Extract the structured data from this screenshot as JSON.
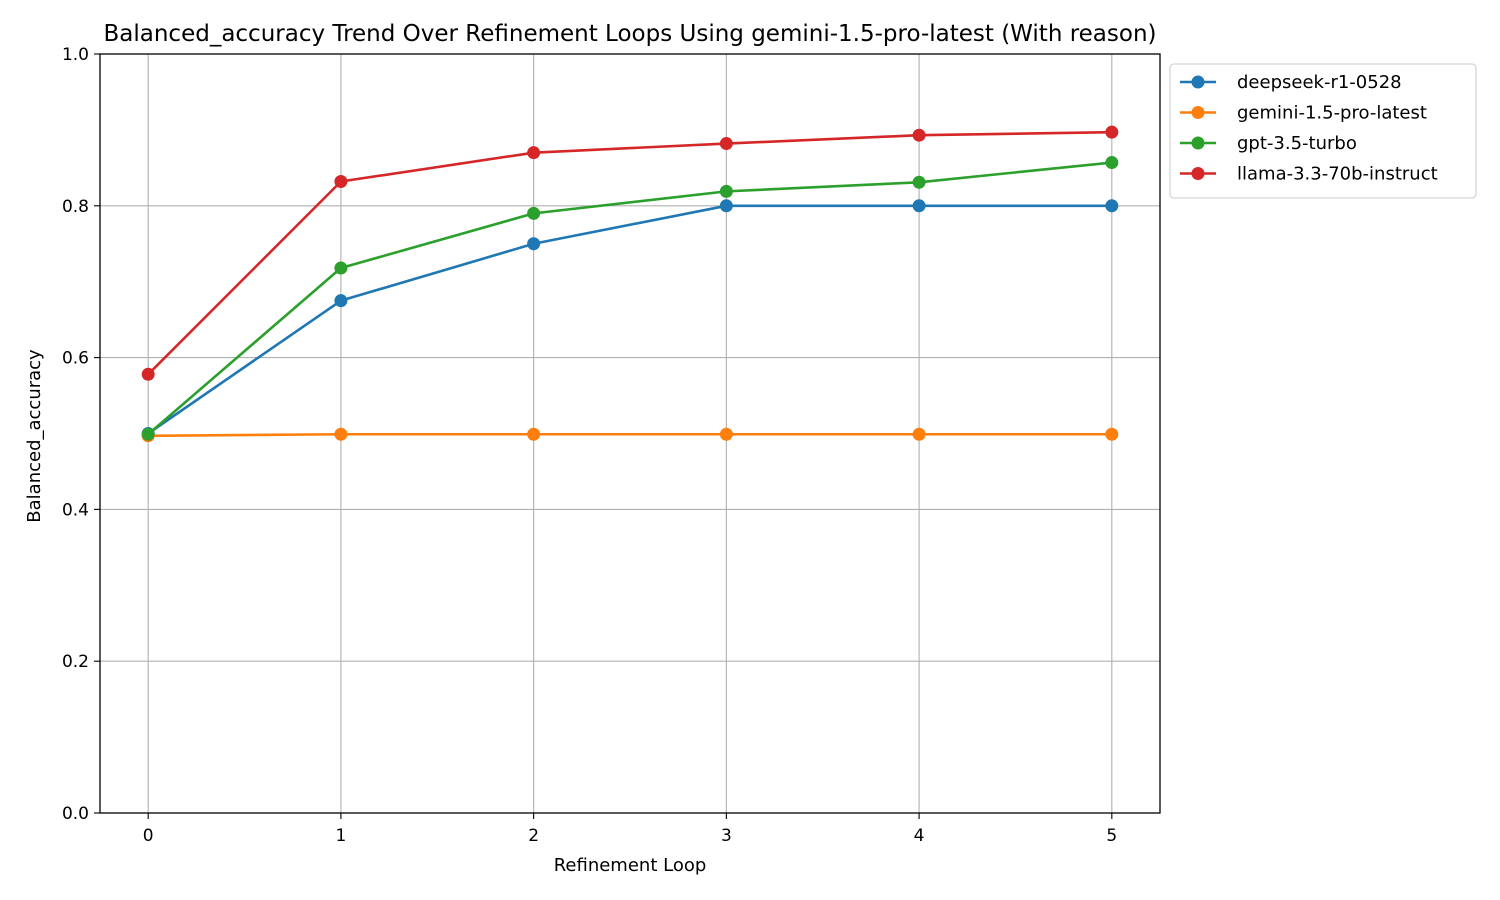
{
  "chart_data": {
    "type": "line",
    "title": "Balanced_accuracy Trend Over Refinement Loops Using gemini-1.5-pro-latest (With reason)",
    "xlabel": "Refinement Loop",
    "ylabel": "Balanced_accuracy",
    "x": [
      0,
      1,
      2,
      3,
      4,
      5
    ],
    "x_ticks": [
      "0",
      "1",
      "2",
      "3",
      "4",
      "5"
    ],
    "ylim": [
      0.0,
      1.0
    ],
    "y_ticks": [
      "0.0",
      "0.2",
      "0.4",
      "0.6",
      "0.8",
      "1.0"
    ],
    "grid": true,
    "legend_position": "outside-top-right",
    "series": [
      {
        "name": "deepseek-r1-0528",
        "color": "#1f77b4",
        "values": [
          0.5,
          0.675,
          0.75,
          0.8,
          0.8,
          0.8
        ]
      },
      {
        "name": "gemini-1.5-pro-latest",
        "color": "#ff7f0e",
        "values": [
          0.497,
          0.499,
          0.499,
          0.499,
          0.499,
          0.499
        ]
      },
      {
        "name": "gpt-3.5-turbo",
        "color": "#2ca02c",
        "values": [
          0.499,
          0.718,
          0.79,
          0.819,
          0.831,
          0.857
        ]
      },
      {
        "name": "llama-3.3-70b-instruct",
        "color": "#d62728",
        "values": [
          0.578,
          0.832,
          0.87,
          0.882,
          0.893,
          0.897
        ]
      }
    ]
  }
}
